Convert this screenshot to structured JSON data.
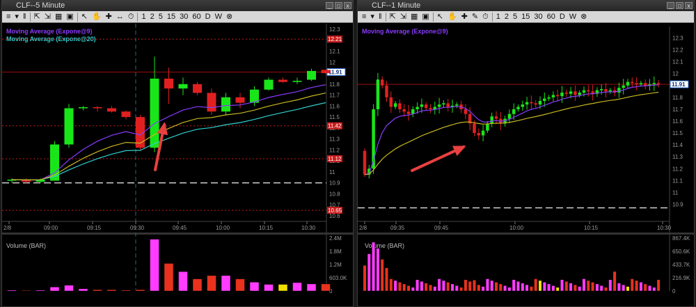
{
  "colors": {
    "up": "#19e619",
    "down": "#e02020",
    "ema9": "#8a3bff",
    "ema20": "#2fd0d0",
    "ema_yellow": "#c8b820",
    "vol_up": "#ff3cff",
    "vol_down": "#e8321e",
    "vol_neutral": "#f0e000",
    "priceline": "#9b1010",
    "arrow": "#e84040"
  },
  "left": {
    "title": "CLF--5 Minute",
    "toolbar": [
      "≡",
      "▾",
      "‖",
      "⇱",
      "⇲",
      "▦",
      "▣",
      "↖",
      "✋",
      "✚",
      "↔",
      "⏱",
      "1",
      "2",
      "5",
      "15",
      "30",
      "60",
      "D",
      "W",
      "⊗"
    ],
    "indicators": [
      "Moving Average (Expone@9)",
      "Moving Average (Expone@20)"
    ],
    "price_axis": [
      "12.3",
      "12.2",
      "12.1",
      "12",
      "11.9",
      "11.8",
      "11.7",
      "11.6",
      "11.5",
      "11.4",
      "11.3",
      "11.2",
      "11.1",
      "11",
      "10.9",
      "10.8",
      "10.7",
      "10.6"
    ],
    "markers": [
      {
        "label": "12.21",
        "price": 12.21
      },
      {
        "label": "11.91",
        "price": 11.91,
        "current": true
      },
      {
        "label": "11.42",
        "price": 11.42
      },
      {
        "label": "11.12",
        "price": 11.12
      },
      {
        "label": "10.65",
        "price": 10.65
      }
    ],
    "time_axis": [
      "2/8",
      "09:00",
      "09:15",
      "09:30",
      "09:45",
      "10:00",
      "10:15",
      "10:30"
    ],
    "volume_title": "Volume (BAR)",
    "volume_axis": [
      "2.4M",
      "1.8M",
      "1.2M",
      "603.0K",
      "0"
    ],
    "chart_data": {
      "type": "candlestick",
      "ylim": [
        10.6,
        12.3
      ],
      "candles": [
        [
          10.92,
          10.94,
          10.9,
          10.93
        ],
        [
          10.93,
          10.94,
          10.9,
          10.91
        ],
        [
          10.91,
          10.94,
          10.9,
          10.93
        ],
        [
          10.92,
          11.28,
          10.92,
          11.25
        ],
        [
          11.25,
          11.62,
          11.22,
          11.58
        ],
        [
          11.58,
          11.6,
          11.56,
          11.59
        ],
        [
          11.59,
          11.6,
          11.55,
          11.58
        ],
        [
          11.58,
          11.6,
          11.54,
          11.55
        ],
        [
          11.55,
          11.56,
          11.48,
          11.5
        ],
        [
          11.5,
          11.52,
          11.2,
          11.22
        ],
        [
          11.22,
          12.05,
          11.18,
          11.85
        ],
        [
          11.85,
          11.95,
          11.62,
          11.76
        ],
        [
          11.76,
          11.86,
          11.7,
          11.8
        ],
        [
          11.8,
          11.82,
          11.7,
          11.72
        ],
        [
          11.72,
          11.76,
          11.52,
          11.55
        ],
        [
          11.55,
          11.72,
          11.52,
          11.68
        ],
        [
          11.68,
          11.72,
          11.58,
          11.63
        ],
        [
          11.63,
          11.78,
          11.6,
          11.75
        ],
        [
          11.75,
          11.86,
          11.74,
          11.84
        ],
        [
          11.84,
          11.86,
          11.81,
          11.82
        ],
        [
          11.82,
          11.86,
          11.8,
          11.83
        ],
        [
          11.84,
          11.94,
          11.83,
          11.92
        ],
        [
          11.93,
          11.93,
          11.89,
          11.9
        ]
      ],
      "volume": [
        0.04,
        0.03,
        0.04,
        0.18,
        0.26,
        0.1,
        0.06,
        0.06,
        0.04,
        0.06,
        2.35,
        1.25,
        0.88,
        0.55,
        0.7,
        0.7,
        0.55,
        0.4,
        0.3,
        0.3,
        0.38,
        0.32,
        0.32
      ]
    }
  },
  "right": {
    "title": "CLF--1 Minute",
    "toolbar": [
      "≡",
      "▾",
      "‖",
      "⇱",
      "⇲",
      "▦",
      "▣",
      "↖",
      "✋",
      "✚",
      "✎",
      "⏱",
      "1",
      "2",
      "5",
      "15",
      "30",
      "60",
      "D",
      "W",
      "⊗"
    ],
    "indicators": [
      "Moving Average (Expone@9)"
    ],
    "price_axis": [
      "12.3",
      "12.2",
      "12.1",
      "12",
      "11.9",
      "11.8",
      "11.7",
      "11.6",
      "11.5",
      "11.4",
      "11.3",
      "11.2",
      "11.1",
      "11",
      "10.9"
    ],
    "markers": [
      {
        "label": "11.91",
        "price": 11.91,
        "current": true
      }
    ],
    "time_axis": [
      "2/8",
      "09:35",
      "09:45",
      "10:00",
      "10:15",
      "10:30"
    ],
    "volume_title": "Volume (BAR)",
    "volume_axis": [
      "867.4K",
      "650.6K",
      "433.7K",
      "216.9K",
      "0"
    ],
    "chart_data": {
      "type": "candlestick",
      "ylim": [
        10.85,
        12.35
      ],
      "volume_max": 867.4
    }
  }
}
